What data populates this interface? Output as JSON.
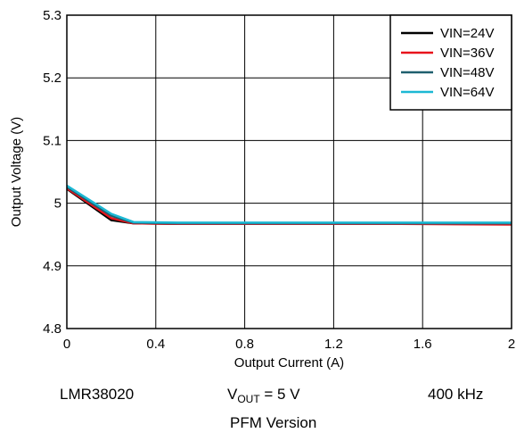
{
  "chart_data": {
    "type": "line",
    "xlabel": "Output Current (A)",
    "ylabel": "Output Voltage (V)",
    "xlim": [
      0,
      2
    ],
    "ylim": [
      4.8,
      5.3
    ],
    "xticks": [
      0,
      0.4,
      0.8,
      1.2,
      1.6,
      2
    ],
    "xtick_labels": [
      "0",
      "0.4",
      "0.8",
      "1.2",
      "1.6",
      "2"
    ],
    "yticks": [
      4.8,
      4.9,
      5.0,
      5.1,
      5.2,
      5.3
    ],
    "ytick_labels": [
      "4.8",
      "4.9",
      "5",
      "5.1",
      "5.2",
      "5.3"
    ],
    "grid": true,
    "legend_position": "top-right",
    "series": [
      {
        "name": "VIN=24V",
        "color": "#000000",
        "x": [
          0,
          0.2,
          0.3,
          0.5,
          1.0,
          1.5,
          2.0
        ],
        "y": [
          5.023,
          4.973,
          4.968,
          4.967,
          4.967,
          4.967,
          4.967
        ]
      },
      {
        "name": "VIN=36V",
        "color": "#e8141c",
        "x": [
          0,
          0.2,
          0.3,
          0.5,
          1.0,
          1.5,
          2.0
        ],
        "y": [
          5.024,
          4.976,
          4.968,
          4.967,
          4.967,
          4.967,
          4.966
        ]
      },
      {
        "name": "VIN=48V",
        "color": "#1f5f6e",
        "x": [
          0,
          0.2,
          0.3,
          0.5,
          1.0,
          1.5,
          2.0
        ],
        "y": [
          5.026,
          4.98,
          4.969,
          4.968,
          4.968,
          4.968,
          4.968
        ]
      },
      {
        "name": "VIN=64V",
        "color": "#1cb8d4",
        "x": [
          0,
          0.2,
          0.3,
          0.5,
          1.0,
          1.5,
          2.0
        ],
        "y": [
          5.028,
          4.983,
          4.97,
          4.969,
          4.969,
          4.969,
          4.969
        ]
      }
    ]
  },
  "captions": {
    "device": "LMR38020",
    "vout_prefix": "V",
    "vout_sub": "OUT",
    "vout_suffix": " = 5 V",
    "frequency": "400 kHz",
    "version": "PFM Version"
  }
}
